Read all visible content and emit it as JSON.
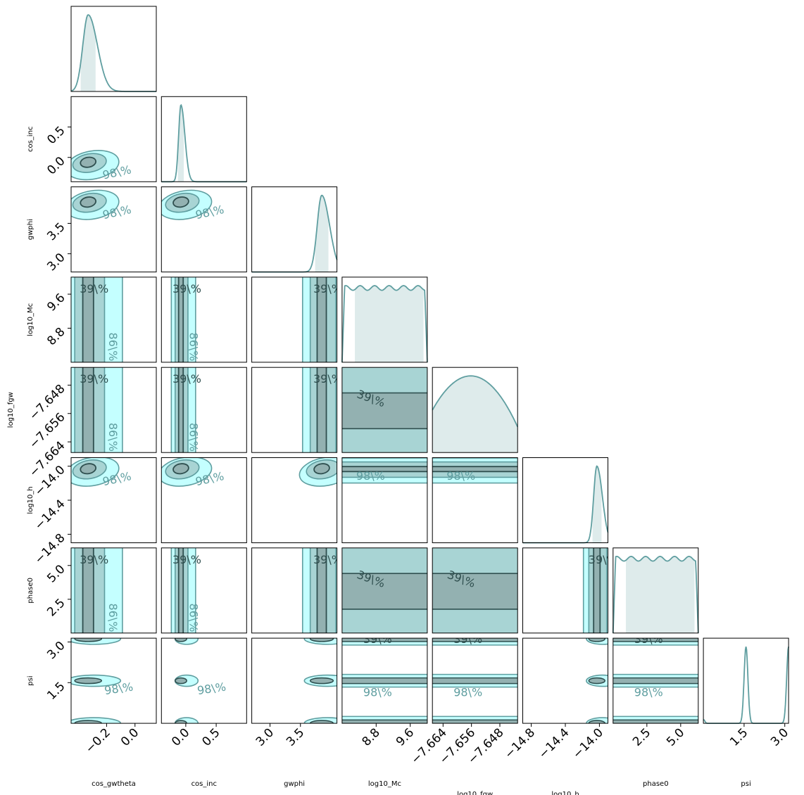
{
  "chart_data": {
    "type": "corner",
    "parameters": [
      {
        "name": "cos_gwtheta",
        "label": "cos_gwtheta",
        "range": [
          -0.45,
          0.15
        ],
        "ticks": [
          -0.2,
          0.0
        ],
        "tick_labels": [
          "−0.2",
          "0.0"
        ]
      },
      {
        "name": "cos_inc",
        "label": "cos_inc",
        "range": [
          -0.4,
          1.0
        ],
        "ticks": [
          0.0,
          0.5
        ],
        "tick_labels": [
          "0.0",
          "0.5"
        ]
      },
      {
        "name": "gwphi",
        "label": "gwphi",
        "range": [
          2.7,
          4.1
        ],
        "ticks": [
          3.0,
          3.5
        ],
        "tick_labels": [
          "3.0",
          "3.5"
        ]
      },
      {
        "name": "log10_Mc",
        "label": "log10_Mc",
        "range": [
          8.0,
          10.0
        ],
        "ticks": [
          8.8,
          9.6
        ],
        "tick_labels": [
          "8.8",
          "9.6"
        ]
      },
      {
        "name": "log10_fgw",
        "label": "log10_fgw",
        "range": [
          -7.667,
          -7.643
        ],
        "ticks": [
          -7.664,
          -7.656,
          -7.648
        ],
        "tick_labels": [
          "−7.664",
          "−7.656",
          "−7.648"
        ]
      },
      {
        "name": "log10_h",
        "label": "log10_h",
        "range": [
          -14.9,
          -13.9
        ],
        "ticks": [
          -14.8,
          -14.4,
          -14.0
        ],
        "tick_labels": [
          "−14.8",
          "−14.4",
          "−14.0"
        ]
      },
      {
        "name": "phase0",
        "label": "phase0",
        "range": [
          0.0,
          6.3
        ],
        "ticks": [
          2.5,
          5.0
        ],
        "tick_labels": [
          "2.5",
          "5.0"
        ]
      },
      {
        "name": "psi",
        "label": "psi",
        "range": [
          0.0,
          3.14
        ],
        "ticks": [
          1.5,
          3.0
        ],
        "tick_labels": [
          "1.5",
          "3.0"
        ]
      }
    ],
    "marginals": [
      {
        "parameter": "cos_gwtheta",
        "peak": -0.33,
        "width": 0.05,
        "shape": "peak"
      },
      {
        "parameter": "cos_inc",
        "peak": -0.08,
        "width": 0.05,
        "shape": "peak"
      },
      {
        "parameter": "gwphi",
        "peak": 3.85,
        "width": 0.1,
        "shape": "peak"
      },
      {
        "parameter": "log10_Mc",
        "shape": "flat"
      },
      {
        "parameter": "log10_fgw",
        "shape": "broad"
      },
      {
        "parameter": "log10_h",
        "peak": -14.03,
        "width": 0.05,
        "shape": "peak"
      },
      {
        "parameter": "phase0",
        "shape": "flat"
      },
      {
        "parameter": "psi",
        "peaks": [
          1.57,
          3.14
        ],
        "shape": "bimodal"
      }
    ],
    "contour_levels": [
      "39\\%",
      "86\\%",
      "98\\%"
    ],
    "colors": {
      "fill_inner": "#93b1b1",
      "fill_mid": "#a8d4d4",
      "fill_outer": "#c4ffff",
      "line": "#5f9ea0",
      "line_dark": "#2f4f4f",
      "marginal_fill": "#deebeb"
    },
    "grid": false,
    "legend": "none"
  }
}
